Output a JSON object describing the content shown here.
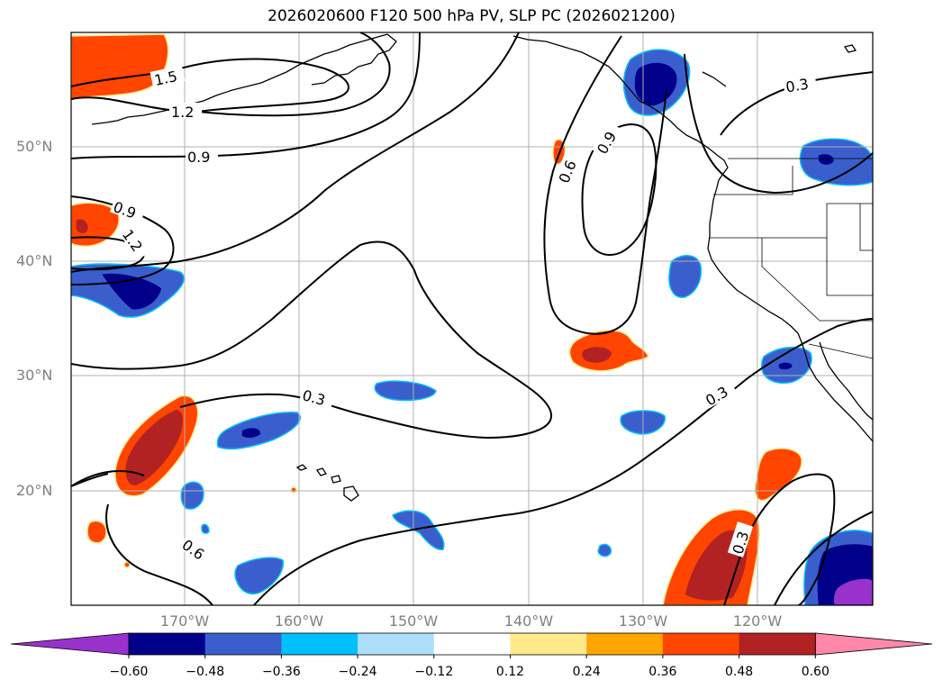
{
  "title": "2026020600 F120 500 hPa PV, SLP PC (2026021200)",
  "lat_labels": [
    "50°N",
    "40°N",
    "30°N",
    "20°N"
  ],
  "lon_labels": [
    "170°W",
    "160°W",
    "150°W",
    "140°W",
    "130°W",
    "120°W"
  ],
  "contour_labels": [
    "1.5",
    "1.2",
    "0.9",
    "0.9",
    "1.2",
    "0.3",
    "0.6",
    "0.6",
    "0.9",
    "0.3",
    "0.3",
    "0.3"
  ],
  "colorbar": {
    "ticks": [
      "−0.60",
      "−0.48",
      "−0.36",
      "−0.24",
      "−0.12",
      "0.12",
      "0.24",
      "0.36",
      "0.48",
      "0.60"
    ],
    "colors": [
      "#9932CC",
      "#00008B",
      "#3A5FCD",
      "#00BFFF",
      "#ADDFFA",
      "#FFFFFF",
      "#FFE98A",
      "#FFA500",
      "#FF4500",
      "#B22222",
      "#FF88AA"
    ]
  },
  "colors": {
    "neg_outer": "#3A5FCD",
    "neg_inner": "#00008B",
    "neg_core": "#9932CC",
    "neg_edge": "#00BFFF",
    "pos_outer": "#FF4500",
    "pos_inner": "#B22222",
    "pos_edge": "#FFE98A",
    "grid": "#B0B0B0",
    "coast": "#000000"
  }
}
